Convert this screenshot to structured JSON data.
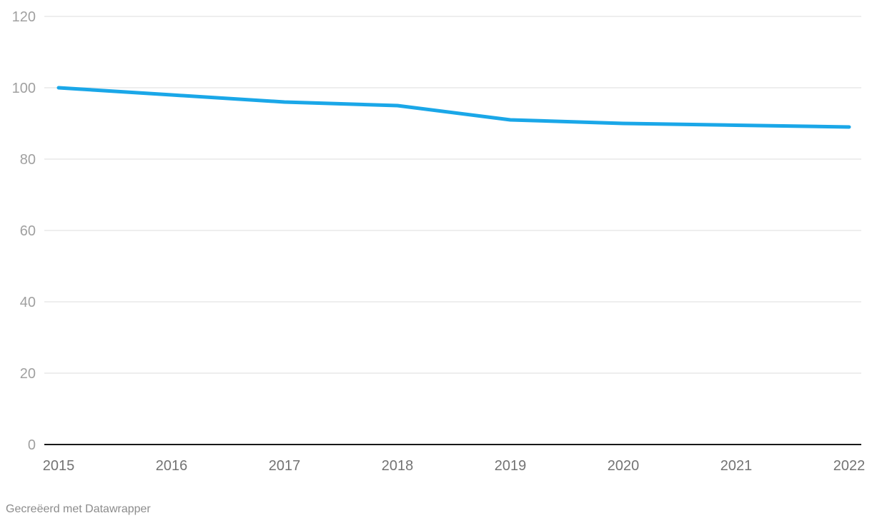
{
  "chart_data": {
    "type": "line",
    "x": [
      "2015",
      "2016",
      "2017",
      "2018",
      "2019",
      "2020",
      "2021",
      "2022"
    ],
    "series": [
      {
        "name": "",
        "values": [
          100,
          98,
          96,
          95,
          91,
          90,
          89.5,
          89
        ]
      }
    ],
    "title": "",
    "xlabel": "",
    "ylabel": "",
    "ylim": [
      0,
      120
    ],
    "yticks": [
      0,
      20,
      40,
      60,
      80,
      100,
      120
    ],
    "grid": true,
    "legend": "none",
    "line_color": "#1aa7e8",
    "line_width": 5,
    "grid_color": "#e8e8e8",
    "baseline_color": "#191919",
    "ytick_label_color": "#a0a0a0",
    "xtick_label_color": "#737373"
  },
  "footer": {
    "attribution": "Gecreëerd met Datawrapper",
    "text_color": "#8c8c8c"
  }
}
